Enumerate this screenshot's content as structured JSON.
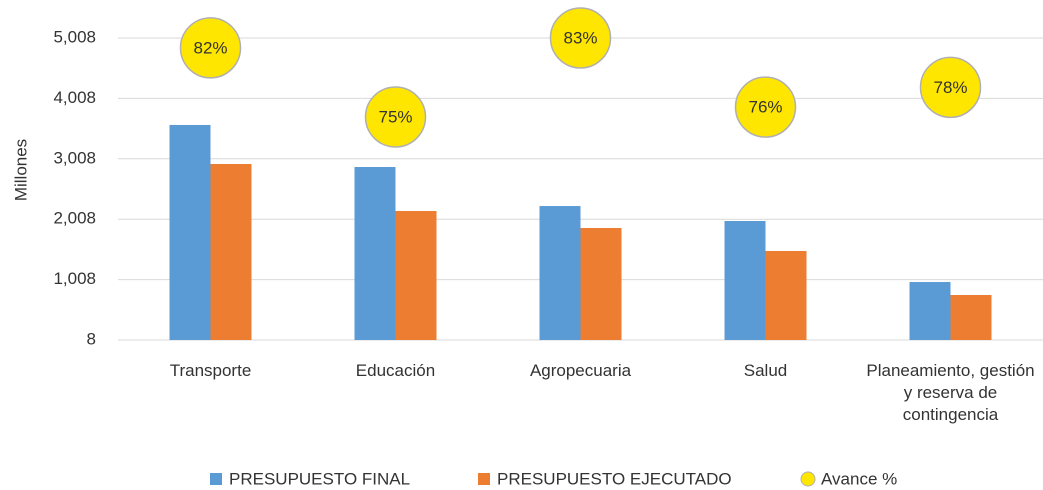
{
  "chart_data": {
    "type": "bar",
    "y_label": "Millones",
    "categories": [
      "Transporte",
      "Educación",
      "Agropecuaria",
      "Salud",
      "Planeamiento, gestión y reserva de contingencia"
    ],
    "series": [
      {
        "name": "PRESUPUESTO FINAL",
        "color": "#5b9bd5",
        "values": [
          3568,
          2872,
          2226,
          1978,
          968
        ]
      },
      {
        "name": "PRESUPUESTO EJECUTADO",
        "color": "#ed7d31",
        "values": [
          2922,
          2144,
          1862,
          1482,
          753
        ]
      },
      {
        "name": "Avance %",
        "color": "#ffe600",
        "type": "scatter",
        "axis": "y2",
        "values": [
          82,
          75,
          83,
          76,
          78
        ],
        "value_labels": [
          "82%",
          "75%",
          "83%",
          "76%",
          "78%"
        ]
      }
    ],
    "ylim": [
      8,
      5008
    ],
    "yticks": [
      8,
      {
        "value": 1008,
        "label": "1,008"
      },
      {
        "value": 2008,
        "label": "2,008"
      },
      {
        "value": 3008,
        "label": "3,008"
      },
      {
        "value": 4008,
        "label": "4,008"
      },
      {
        "value": 5008,
        "label": "5,008"
      }
    ],
    "y2lim": [
      52.4,
      83
    ],
    "grid": true,
    "legend": "bottom"
  }
}
